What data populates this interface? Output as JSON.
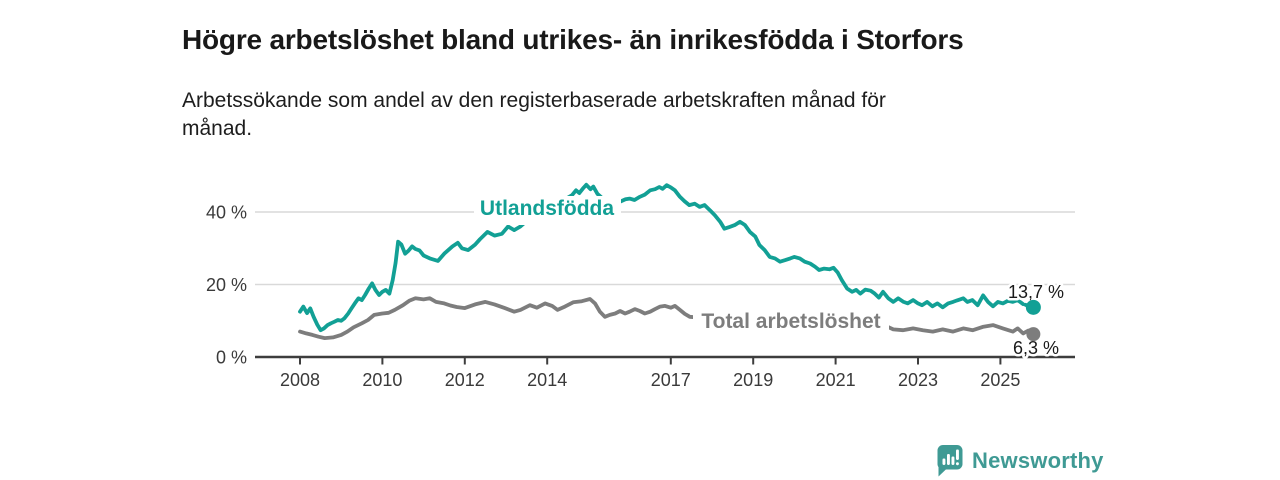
{
  "header": {
    "title": "Högre arbetslöshet bland utrikes- än inrikesfödda i Storfors",
    "subtitle": "Arbetssökande som andel av den registerbaserade arbetskraften månad för månad."
  },
  "footer": {
    "brand": "Newsworthy"
  },
  "colors": {
    "accent_teal": "#12a095",
    "series_gray": "#7d7d7d",
    "grid": "#d9d9d9",
    "axis": "#3d3d3d",
    "text_dark": "#1a1a1a",
    "logo_teal": "#3f9a94"
  },
  "chart_data": {
    "type": "line",
    "title": "Högre arbetslöshet bland utrikes- än inrikesfödda i Storfors",
    "subtitle": "Arbetssökande som andel av den registerbaserade arbetskraften månad för månad.",
    "unit": "%",
    "ylim": [
      0,
      50
    ],
    "grid": "horizontal-only",
    "gridline_values": [
      20,
      40
    ],
    "y_ticks": [
      {
        "value": 0,
        "label": "0 %"
      },
      {
        "value": 20,
        "label": "20 %"
      },
      {
        "value": 40,
        "label": "40 %"
      }
    ],
    "x_ticks": [
      {
        "year": 2008,
        "label": "2008"
      },
      {
        "year": 2010,
        "label": "2010"
      },
      {
        "year": 2012,
        "label": "2012"
      },
      {
        "year": 2014,
        "label": "2014"
      },
      {
        "year": 2017,
        "label": "2017"
      },
      {
        "year": 2019,
        "label": "2019"
      },
      {
        "year": 2021,
        "label": "2021"
      },
      {
        "year": 2023,
        "label": "2023"
      },
      {
        "year": 2025,
        "label": "2025"
      }
    ],
    "series": [
      {
        "name": "Utlandsfödda",
        "color": "#12a095",
        "end_label": "13,7 %",
        "end_value": 13.7,
        "end_year": 2025.8,
        "end_dash": [
          [
            2025.61,
            14.4
          ],
          [
            2025.72,
            13.9
          ]
        ],
        "points": [
          [
            2008.0,
            12.5
          ],
          [
            2008.08,
            13.9
          ],
          [
            2008.17,
            12.1
          ],
          [
            2008.25,
            13.4
          ],
          [
            2008.33,
            11.1
          ],
          [
            2008.42,
            8.9
          ],
          [
            2008.5,
            7.4
          ],
          [
            2008.58,
            7.9
          ],
          [
            2008.67,
            8.8
          ],
          [
            2008.75,
            9.3
          ],
          [
            2008.83,
            9.7
          ],
          [
            2008.92,
            10.2
          ],
          [
            2009.0,
            10.0
          ],
          [
            2009.08,
            10.7
          ],
          [
            2009.17,
            12.0
          ],
          [
            2009.25,
            13.4
          ],
          [
            2009.33,
            14.8
          ],
          [
            2009.42,
            16.2
          ],
          [
            2009.5,
            15.7
          ],
          [
            2009.58,
            17.1
          ],
          [
            2009.67,
            18.9
          ],
          [
            2009.75,
            20.3
          ],
          [
            2009.83,
            18.5
          ],
          [
            2009.92,
            17.1
          ],
          [
            2010.0,
            18.0
          ],
          [
            2010.08,
            18.5
          ],
          [
            2010.17,
            17.5
          ],
          [
            2010.25,
            21.2
          ],
          [
            2010.32,
            26.0
          ],
          [
            2010.38,
            31.8
          ],
          [
            2010.46,
            31.0
          ],
          [
            2010.55,
            28.5
          ],
          [
            2010.63,
            29.3
          ],
          [
            2010.72,
            30.5
          ],
          [
            2010.8,
            29.8
          ],
          [
            2010.9,
            29.4
          ],
          [
            2011.0,
            28.0
          ],
          [
            2011.15,
            27.2
          ],
          [
            2011.35,
            26.5
          ],
          [
            2011.5,
            28.5
          ],
          [
            2011.7,
            30.5
          ],
          [
            2011.83,
            31.5
          ],
          [
            2011.93,
            30.0
          ],
          [
            2012.08,
            29.5
          ],
          [
            2012.25,
            31.0
          ],
          [
            2012.37,
            32.5
          ],
          [
            2012.55,
            34.5
          ],
          [
            2012.72,
            33.5
          ],
          [
            2012.9,
            34.0
          ],
          [
            2013.05,
            36.0
          ],
          [
            2013.2,
            35.0
          ],
          [
            2013.35,
            36.0
          ],
          [
            2013.5,
            37.5
          ],
          [
            2013.7,
            38.0
          ],
          [
            2013.85,
            39.8
          ],
          [
            2014.0,
            40.6
          ],
          [
            2014.15,
            41.6
          ],
          [
            2014.3,
            42.6
          ],
          [
            2014.45,
            43.6
          ],
          [
            2014.6,
            44.6
          ],
          [
            2014.7,
            46.0
          ],
          [
            2014.78,
            45.2
          ],
          [
            2014.87,
            46.5
          ],
          [
            2014.95,
            47.5
          ],
          [
            2015.05,
            46.3
          ],
          [
            2015.12,
            47.0
          ],
          [
            2015.22,
            45.0
          ],
          [
            2015.3,
            44.2
          ],
          [
            2015.4,
            43.0
          ],
          [
            2015.5,
            43.3
          ],
          [
            2015.65,
            42.8
          ],
          [
            2015.78,
            42.9
          ],
          [
            2015.9,
            43.5
          ],
          [
            2016.0,
            43.7
          ],
          [
            2016.12,
            43.3
          ],
          [
            2016.25,
            44.2
          ],
          [
            2016.37,
            44.8
          ],
          [
            2016.5,
            46.0
          ],
          [
            2016.62,
            46.3
          ],
          [
            2016.72,
            46.9
          ],
          [
            2016.8,
            46.4
          ],
          [
            2016.9,
            47.4
          ],
          [
            2017.0,
            46.8
          ],
          [
            2017.1,
            46.0
          ],
          [
            2017.22,
            44.2
          ],
          [
            2017.33,
            43.0
          ],
          [
            2017.45,
            41.9
          ],
          [
            2017.58,
            42.3
          ],
          [
            2017.7,
            41.4
          ],
          [
            2017.82,
            41.9
          ],
          [
            2017.95,
            40.5
          ],
          [
            2018.07,
            39.1
          ],
          [
            2018.2,
            37.3
          ],
          [
            2018.3,
            35.4
          ],
          [
            2018.43,
            35.9
          ],
          [
            2018.55,
            36.4
          ],
          [
            2018.68,
            37.3
          ],
          [
            2018.8,
            36.4
          ],
          [
            2018.92,
            34.5
          ],
          [
            2019.05,
            33.2
          ],
          [
            2019.15,
            30.9
          ],
          [
            2019.28,
            29.5
          ],
          [
            2019.4,
            27.6
          ],
          [
            2019.53,
            27.2
          ],
          [
            2019.65,
            26.3
          ],
          [
            2019.77,
            26.7
          ],
          [
            2019.9,
            27.2
          ],
          [
            2020.0,
            27.6
          ],
          [
            2020.13,
            27.2
          ],
          [
            2020.25,
            26.3
          ],
          [
            2020.38,
            25.8
          ],
          [
            2020.5,
            24.9
          ],
          [
            2020.6,
            24.0
          ],
          [
            2020.72,
            24.4
          ],
          [
            2020.85,
            24.2
          ],
          [
            2020.95,
            24.6
          ],
          [
            2021.05,
            23.3
          ],
          [
            2021.15,
            21.2
          ],
          [
            2021.28,
            18.9
          ],
          [
            2021.4,
            18.0
          ],
          [
            2021.5,
            18.5
          ],
          [
            2021.6,
            17.5
          ],
          [
            2021.72,
            18.6
          ],
          [
            2021.85,
            18.3
          ],
          [
            2021.95,
            17.5
          ],
          [
            2022.05,
            16.4
          ],
          [
            2022.15,
            18.0
          ],
          [
            2022.28,
            16.2
          ],
          [
            2022.4,
            15.2
          ],
          [
            2022.52,
            16.2
          ],
          [
            2022.65,
            15.2
          ],
          [
            2022.75,
            14.8
          ],
          [
            2022.88,
            15.7
          ],
          [
            2023.0,
            14.8
          ],
          [
            2023.1,
            14.3
          ],
          [
            2023.22,
            15.2
          ],
          [
            2023.35,
            14.0
          ],
          [
            2023.47,
            14.8
          ],
          [
            2023.6,
            13.7
          ],
          [
            2023.73,
            14.8
          ],
          [
            2023.85,
            15.2
          ],
          [
            2023.95,
            15.6
          ],
          [
            2024.1,
            16.2
          ],
          [
            2024.2,
            15.2
          ],
          [
            2024.32,
            15.7
          ],
          [
            2024.45,
            14.3
          ],
          [
            2024.58,
            17.0
          ],
          [
            2024.7,
            15.2
          ],
          [
            2024.82,
            14.0
          ],
          [
            2024.94,
            15.2
          ],
          [
            2025.06,
            14.8
          ],
          [
            2025.18,
            15.5
          ],
          [
            2025.3,
            15.2
          ],
          [
            2025.42,
            15.7
          ],
          [
            2025.55,
            14.6
          ]
        ]
      },
      {
        "name": "Total arbetslöshet",
        "color": "#7d7d7d",
        "end_label": "6,3 %",
        "end_value": 6.3,
        "end_year": 2025.8,
        "points": [
          [
            2008.0,
            7.0
          ],
          [
            2008.15,
            6.5
          ],
          [
            2008.3,
            6.1
          ],
          [
            2008.45,
            5.6
          ],
          [
            2008.6,
            5.2
          ],
          [
            2008.8,
            5.4
          ],
          [
            2009.0,
            6.1
          ],
          [
            2009.15,
            7.0
          ],
          [
            2009.3,
            8.2
          ],
          [
            2009.5,
            9.3
          ],
          [
            2009.65,
            10.2
          ],
          [
            2009.8,
            11.6
          ],
          [
            2010.0,
            12.0
          ],
          [
            2010.15,
            12.2
          ],
          [
            2010.3,
            13.0
          ],
          [
            2010.5,
            14.3
          ],
          [
            2010.65,
            15.5
          ],
          [
            2010.8,
            16.2
          ],
          [
            2011.0,
            15.9
          ],
          [
            2011.15,
            16.2
          ],
          [
            2011.3,
            15.2
          ],
          [
            2011.5,
            14.8
          ],
          [
            2011.65,
            14.2
          ],
          [
            2011.8,
            13.8
          ],
          [
            2012.0,
            13.5
          ],
          [
            2012.25,
            14.5
          ],
          [
            2012.5,
            15.2
          ],
          [
            2012.72,
            14.5
          ],
          [
            2012.97,
            13.5
          ],
          [
            2013.2,
            12.5
          ],
          [
            2013.35,
            13.0
          ],
          [
            2013.58,
            14.3
          ],
          [
            2013.75,
            13.6
          ],
          [
            2013.95,
            14.8
          ],
          [
            2014.12,
            14.1
          ],
          [
            2014.25,
            13.0
          ],
          [
            2014.43,
            13.9
          ],
          [
            2014.63,
            15.1
          ],
          [
            2014.84,
            15.4
          ],
          [
            2015.04,
            16.0
          ],
          [
            2015.16,
            14.8
          ],
          [
            2015.28,
            12.5
          ],
          [
            2015.4,
            11.1
          ],
          [
            2015.52,
            11.6
          ],
          [
            2015.65,
            12.0
          ],
          [
            2015.77,
            12.7
          ],
          [
            2015.89,
            12.0
          ],
          [
            2016.0,
            12.5
          ],
          [
            2016.13,
            13.2
          ],
          [
            2016.25,
            12.7
          ],
          [
            2016.37,
            12.0
          ],
          [
            2016.5,
            12.5
          ],
          [
            2016.62,
            13.2
          ],
          [
            2016.74,
            13.9
          ],
          [
            2016.86,
            14.1
          ],
          [
            2017.0,
            13.6
          ],
          [
            2017.1,
            14.1
          ],
          [
            2017.22,
            13.0
          ],
          [
            2017.34,
            11.9
          ],
          [
            2017.46,
            11.1
          ],
          [
            2018.0,
            10.6
          ],
          [
            2018.5,
            10.2
          ],
          [
            2019.0,
            9.8
          ],
          [
            2019.5,
            9.5
          ],
          [
            2020.0,
            9.2
          ],
          [
            2020.5,
            9.0
          ],
          [
            2021.0,
            8.8
          ],
          [
            2021.5,
            8.6
          ],
          [
            2022.0,
            8.4
          ],
          [
            2022.27,
            8.3
          ],
          [
            2022.4,
            7.6
          ],
          [
            2022.63,
            7.4
          ],
          [
            2022.88,
            7.9
          ],
          [
            2023.12,
            7.4
          ],
          [
            2023.36,
            7.0
          ],
          [
            2023.6,
            7.6
          ],
          [
            2023.85,
            7.0
          ],
          [
            2024.1,
            7.9
          ],
          [
            2024.33,
            7.4
          ],
          [
            2024.57,
            8.3
          ],
          [
            2024.82,
            8.8
          ],
          [
            2025.06,
            7.9
          ],
          [
            2025.3,
            7.0
          ],
          [
            2025.42,
            7.9
          ],
          [
            2025.55,
            6.5
          ],
          [
            2025.68,
            7.3
          ],
          [
            2025.8,
            6.3
          ]
        ]
      }
    ]
  }
}
